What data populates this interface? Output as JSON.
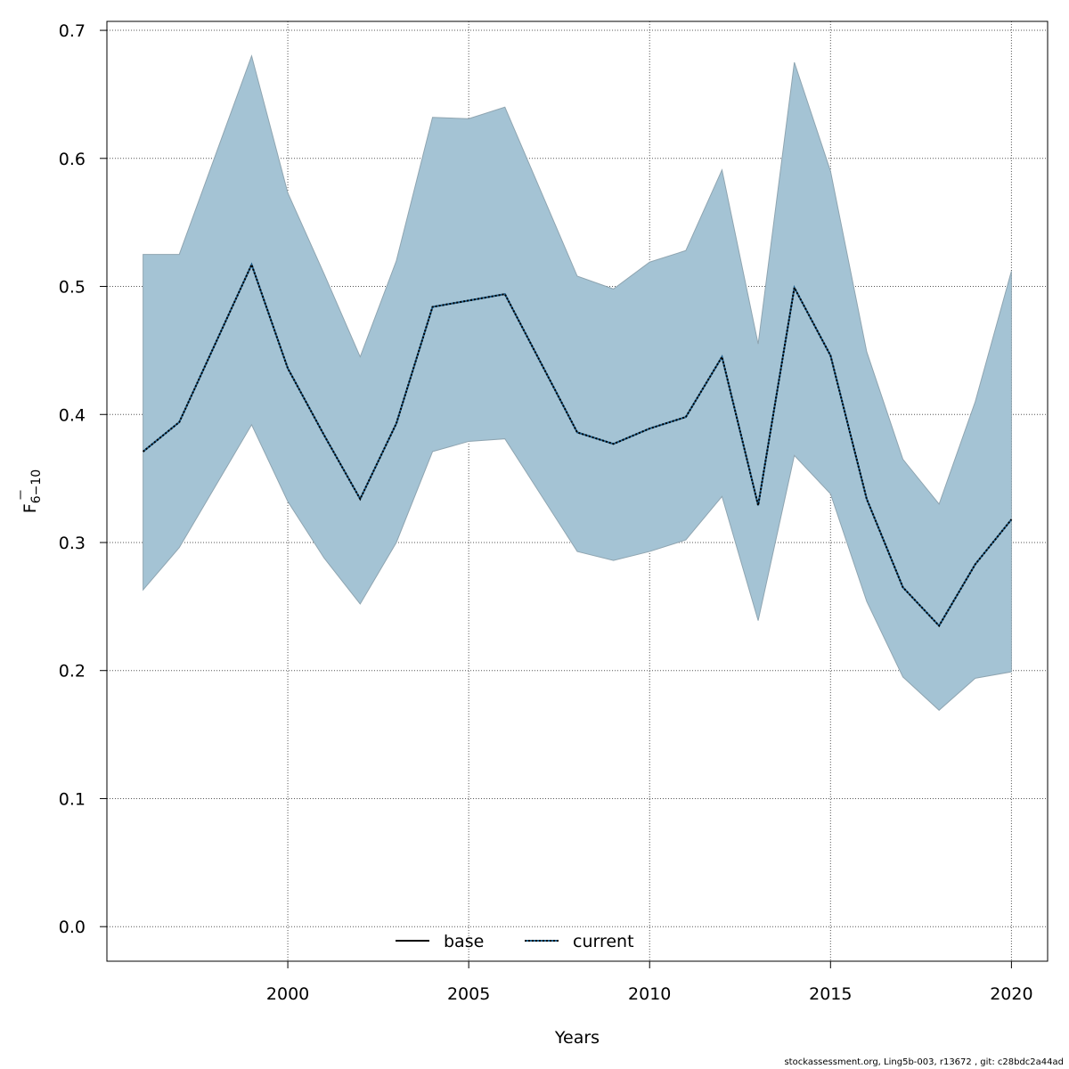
{
  "chart_data": {
    "type": "area",
    "xlabel": "Years",
    "ylabel_main": "F",
    "ylabel_sub": "6−10",
    "xlim": [
      1995,
      2021
    ],
    "ylim": [
      -0.027,
      0.707
    ],
    "x_ticks": [
      2000,
      2005,
      2010,
      2015,
      2020
    ],
    "x_tick_labels": [
      "2000",
      "2005",
      "2010",
      "2015",
      "2020"
    ],
    "y_ticks": [
      0.0,
      0.1,
      0.2,
      0.3,
      0.4,
      0.5,
      0.6,
      0.7
    ],
    "y_tick_labels": [
      "0.0",
      "0.1",
      "0.2",
      "0.3",
      "0.4",
      "0.5",
      "0.6",
      "0.7"
    ],
    "grid": true,
    "legend_position": "bottom-center",
    "x": [
      1996,
      1997,
      1999,
      2000,
      2001,
      2002,
      2003,
      2004,
      2005,
      2006,
      2008,
      2009,
      2010,
      2011,
      2012,
      2013,
      2014,
      2015,
      2016,
      2017,
      2018,
      2019,
      2020
    ],
    "band": {
      "upper": [
        0.525,
        0.525,
        0.68,
        0.573,
        0.51,
        0.445,
        0.52,
        0.632,
        0.631,
        0.64,
        0.508,
        0.498,
        0.519,
        0.528,
        0.591,
        0.455,
        0.675,
        0.59,
        0.449,
        0.365,
        0.33,
        0.41,
        0.512
      ],
      "lower": [
        0.263,
        0.296,
        0.392,
        0.332,
        0.288,
        0.252,
        0.3,
        0.371,
        0.379,
        0.381,
        0.293,
        0.286,
        0.293,
        0.302,
        0.336,
        0.239,
        0.368,
        0.338,
        0.254,
        0.195,
        0.169,
        0.194,
        0.199
      ]
    },
    "series": [
      {
        "name": "current",
        "line_style": "dotted",
        "values": [
          0.371,
          0.394,
          0.517,
          0.436,
          0.384,
          0.334,
          0.393,
          0.484,
          0.489,
          0.494,
          0.386,
          0.377,
          0.389,
          0.398,
          0.445,
          0.329,
          0.499,
          0.446,
          0.334,
          0.265,
          0.235,
          0.283,
          0.318
        ]
      }
    ],
    "legend": [
      {
        "label": "base",
        "style": "solid",
        "color": "#000000"
      },
      {
        "label": "current",
        "style": "dotted",
        "color": "#1f5f8b"
      }
    ],
    "colors": {
      "band_fill": "#a4c3d4",
      "band_stroke": "#8fa5b1",
      "line": "#000000",
      "grid": "#555555"
    }
  },
  "footer": {
    "text": "stockassessment.org, Ling5b-003, r13672 , git: c28bdc2a44ad"
  }
}
